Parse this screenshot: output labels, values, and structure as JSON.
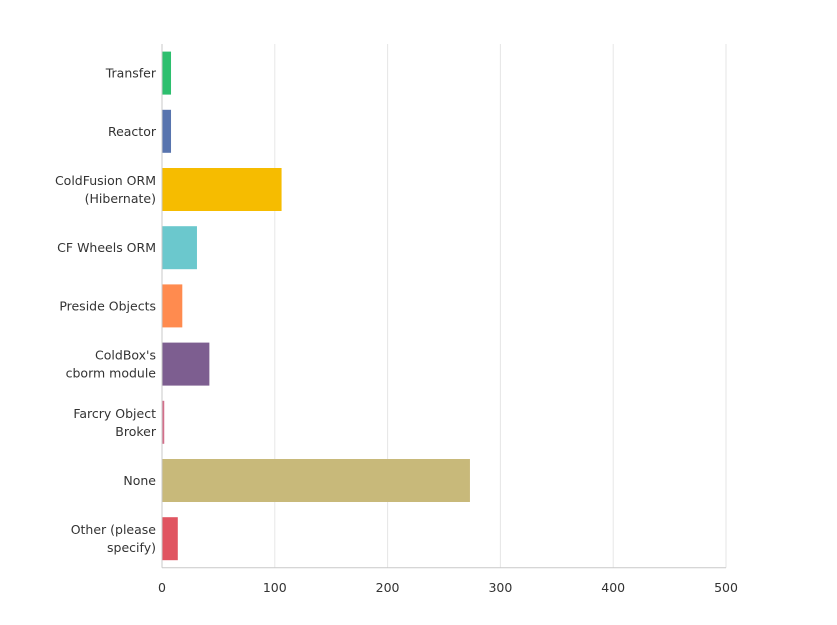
{
  "chart_data": {
    "type": "bar",
    "orientation": "horizontal",
    "categories": [
      [
        "Transfer"
      ],
      [
        "Reactor"
      ],
      [
        "ColdFusion ORM",
        "(Hibernate)"
      ],
      [
        "CF Wheels ORM"
      ],
      [
        "Preside Objects"
      ],
      [
        "ColdBox's",
        "cborm module"
      ],
      [
        "Farcry Object",
        "Broker"
      ],
      [
        "None"
      ],
      [
        "Other (please",
        "specify)"
      ]
    ],
    "values": [
      8,
      8,
      106,
      31,
      18,
      42,
      2,
      273,
      14
    ],
    "colors": [
      "#2dbf6e",
      "#5874ae",
      "#f6bc00",
      "#6bc8cd",
      "#ff8b4f",
      "#7d5e90",
      "#d36f8a",
      "#c8b97a",
      "#e05561"
    ],
    "xlim": [
      0,
      500
    ],
    "xticks": [
      0,
      100,
      200,
      300,
      400,
      500
    ],
    "grid": true,
    "title": "",
    "xlabel": "",
    "ylabel": ""
  }
}
